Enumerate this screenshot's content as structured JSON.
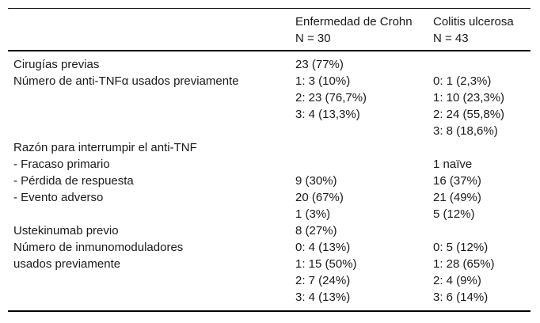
{
  "table": {
    "columns": [
      {
        "title": "",
        "subtitle": ""
      },
      {
        "title": "Enfermedad de Crohn",
        "subtitle": "N = 30"
      },
      {
        "title": "Colitis ulcerosa",
        "subtitle": "N = 43"
      }
    ],
    "rows": [
      {
        "label": "Cirugías previas",
        "cd": "23 (77%)",
        "uc": ""
      },
      {
        "label": "Número de anti-TNFα usados previamente",
        "cd": "1: 3 (10%)",
        "uc": "0: 1 (2,3%)"
      },
      {
        "label": "",
        "cd": "2: 23 (76,7%)",
        "uc": "1: 10 (23,3%)"
      },
      {
        "label": "",
        "cd": "3: 4 (13,3%)",
        "uc": "2: 24 (55,8%)"
      },
      {
        "label": "",
        "cd": "",
        "uc": "3: 8 (18,6%)"
      },
      {
        "label": "Razón para interrumpir el anti-TNF",
        "cd": "",
        "uc": ""
      },
      {
        "label": "- Fracaso primario",
        "cd": "",
        "uc": "1 naïve"
      },
      {
        "label": "- Pérdida de respuesta",
        "cd": "9 (30%)",
        "uc": "16 (37%)"
      },
      {
        "label": "- Evento adverso",
        "cd": "20 (67%)",
        "uc": "21 (49%)"
      },
      {
        "label": "",
        "cd": "1 (3%)",
        "uc": "5 (12%)"
      },
      {
        "label": "Ustekinumab previo",
        "cd": "8 (27%)",
        "uc": ""
      },
      {
        "label": "Número de inmunomoduladores",
        "cd": "0: 4 (13%)",
        "uc": "0: 5 (12%)"
      },
      {
        "label": "usados previamente",
        "cd": "1: 15 (50%)",
        "uc": "1: 28 (65%)"
      },
      {
        "label": "",
        "cd": "2: 7 (24%)",
        "uc": "2: 4 (9%)"
      },
      {
        "label": "",
        "cd": "3: 4 (13%)",
        "uc": "3: 6 (14%)"
      }
    ]
  },
  "colors": {
    "background": "#ffffff",
    "text": "#1a1a1a",
    "rule": "#000000"
  }
}
